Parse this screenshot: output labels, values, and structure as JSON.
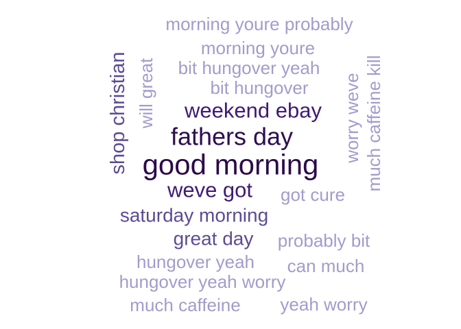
{
  "chart_data": {
    "type": "wordcloud",
    "title": "",
    "words": [
      {
        "text": "good morning",
        "freq": 10,
        "color": "#2b0a4a",
        "rotation": 0
      },
      {
        "text": "fathers day",
        "freq": 8,
        "color": "#2e0c52",
        "rotation": 0
      },
      {
        "text": "weekend ebay",
        "freq": 6,
        "color": "#3f1a74",
        "rotation": 0
      },
      {
        "text": "weve got",
        "freq": 6,
        "color": "#3f1a74",
        "rotation": 0
      },
      {
        "text": "shop christian",
        "freq": 5,
        "color": "#5c4b94",
        "rotation": -90
      },
      {
        "text": "saturday morning",
        "freq": 5,
        "color": "#5c4b94",
        "rotation": 0
      },
      {
        "text": "great day",
        "freq": 5,
        "color": "#5c4b94",
        "rotation": 0
      },
      {
        "text": "morning youre probably",
        "freq": 3,
        "color": "#a29ccb",
        "rotation": 0
      },
      {
        "text": "morning youre",
        "freq": 3,
        "color": "#a29ccb",
        "rotation": 0
      },
      {
        "text": "bit hungover yeah",
        "freq": 3,
        "color": "#a29ccb",
        "rotation": 0
      },
      {
        "text": "bit hungover",
        "freq": 3,
        "color": "#a29ccb",
        "rotation": 0
      },
      {
        "text": "will great",
        "freq": 3,
        "color": "#a29ccb",
        "rotation": -90
      },
      {
        "text": "worry weve",
        "freq": 3,
        "color": "#a29ccb",
        "rotation": -90
      },
      {
        "text": "much caffeine kill",
        "freq": 3,
        "color": "#a29ccb",
        "rotation": -90
      },
      {
        "text": "got cure",
        "freq": 3,
        "color": "#a29ccb",
        "rotation": 0
      },
      {
        "text": "probably bit",
        "freq": 3,
        "color": "#a29ccb",
        "rotation": 0
      },
      {
        "text": "hungover yeah",
        "freq": 3,
        "color": "#a29ccb",
        "rotation": 0
      },
      {
        "text": "can much",
        "freq": 3,
        "color": "#a29ccb",
        "rotation": 0
      },
      {
        "text": "hungover yeah worry",
        "freq": 3,
        "color": "#a29ccb",
        "rotation": 0
      },
      {
        "text": "much caffeine",
        "freq": 3,
        "color": "#a29ccb",
        "rotation": 0
      },
      {
        "text": "yeah worry",
        "freq": 3,
        "color": "#a29ccb",
        "rotation": 0
      }
    ]
  }
}
